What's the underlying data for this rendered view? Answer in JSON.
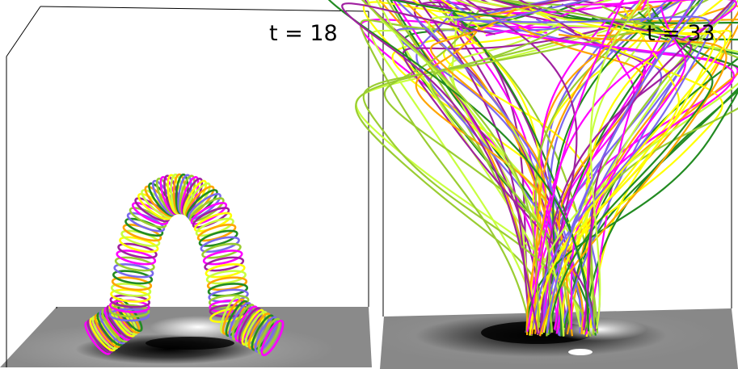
{
  "panels": [
    {
      "label": "t = 18"
    },
    {
      "label": "t = 33"
    }
  ]
}
